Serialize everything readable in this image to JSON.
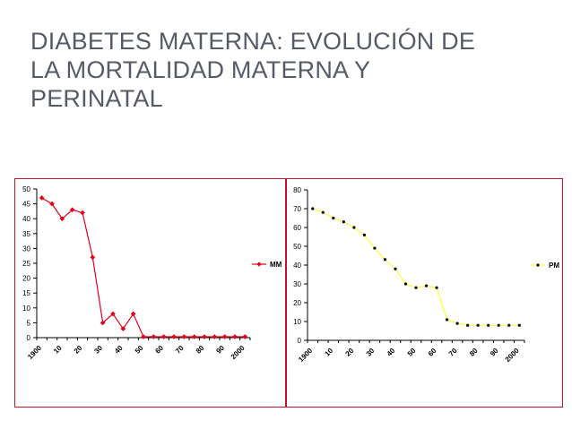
{
  "title_lines": [
    "DIABETES MATERNA: EVOLUCIÓN DE",
    "LA MORTALIDAD MATERNA Y",
    "PERINATAL"
  ],
  "chart_data": [
    {
      "type": "line",
      "series": [
        {
          "name": "MM",
          "color": "#e2001a",
          "marker": "diamond",
          "values": [
            47,
            45,
            40,
            43,
            42,
            27,
            5,
            8,
            3,
            8,
            0.3,
            0.3,
            0.3,
            0.3,
            0.3,
            0.3,
            0.3,
            0.3,
            0.3,
            0.3,
            0.3
          ]
        }
      ],
      "x": [
        "1900",
        "",
        "10",
        "",
        "20",
        "",
        "30",
        "",
        "40",
        "",
        "50",
        "",
        "60",
        "",
        "70",
        "",
        "80",
        "",
        "90",
        "",
        "2000"
      ],
      "ylim": [
        0,
        50
      ],
      "ytick_step": 5,
      "legend": "right"
    },
    {
      "type": "line",
      "series": [
        {
          "name": "PM",
          "color": "#ffff33",
          "marker_color": "#000000",
          "marker": "circle",
          "values": [
            70,
            68,
            65,
            63,
            60,
            56,
            49,
            43,
            38,
            30,
            28,
            29,
            28,
            11,
            9,
            8,
            8,
            8,
            8,
            8,
            8
          ]
        }
      ],
      "x": [
        "1900",
        "",
        "10",
        "",
        "20",
        "",
        "30",
        "",
        "40",
        "",
        "50",
        "",
        "60",
        "",
        "70",
        "",
        "80",
        "",
        "90",
        "",
        "2000"
      ],
      "ylim": [
        0,
        80
      ],
      "ytick_step": 10,
      "legend": "right"
    }
  ]
}
